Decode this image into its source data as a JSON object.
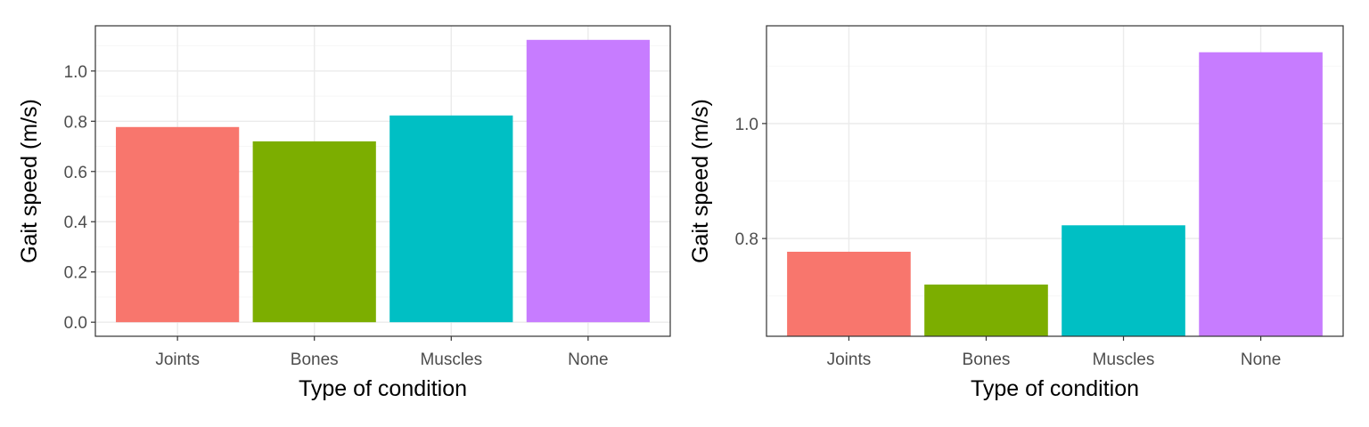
{
  "chart_data": [
    {
      "type": "bar",
      "categories": [
        "Joints",
        "Bones",
        "Muscles",
        "None"
      ],
      "values": [
        0.777,
        0.72,
        0.823,
        1.124
      ],
      "colors": [
        "#F8766D",
        "#7CAE00",
        "#00BFC4",
        "#C77CFF"
      ],
      "xlabel": "Type of condition",
      "ylabel": "Gait speed (m/s)",
      "ylim": [
        -0.056,
        1.18
      ],
      "yticks": [
        0.0,
        0.2,
        0.4,
        0.6,
        0.8,
        1.0
      ],
      "ytick_labels": [
        "0.0",
        "0.2",
        "0.4",
        "0.6",
        "0.8",
        "1.0"
      ],
      "grid": true
    },
    {
      "type": "bar",
      "categories": [
        "Joints",
        "Bones",
        "Muscles",
        "None"
      ],
      "values": [
        0.777,
        0.72,
        0.823,
        1.124
      ],
      "colors": [
        "#F8766D",
        "#7CAE00",
        "#00BFC4",
        "#C77CFF"
      ],
      "xlabel": "Type of condition",
      "ylabel": "Gait speed (m/s)",
      "ylim": [
        0.63,
        1.17
      ],
      "yticks": [
        0.8,
        1.0
      ],
      "ytick_labels": [
        "0.8",
        "1.0"
      ],
      "grid": true
    }
  ]
}
